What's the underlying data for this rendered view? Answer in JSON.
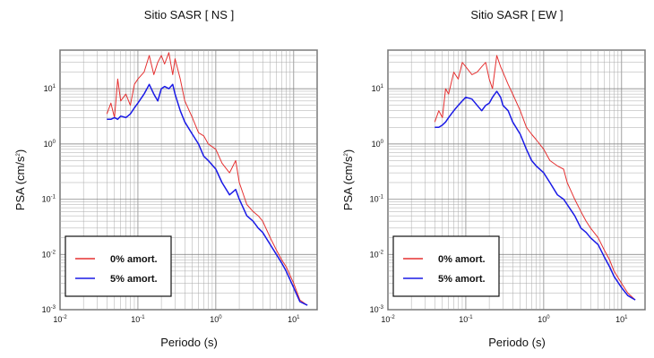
{
  "chart_data": [
    {
      "type": "line",
      "title": "Sitio SASR [ NS ]",
      "xlabel": "Periodo (s)",
      "ylabel": "PSA (cm/s",
      "ylabel_sup": "2",
      "ylabel_end": ")",
      "x_scale": "log",
      "y_scale": "log",
      "xlim": [
        0.01,
        20
      ],
      "ylim": [
        0.001,
        50
      ],
      "grid": true,
      "legend_position": "bottom-left",
      "x_ticks": [
        {
          "base": "10",
          "exp": "-2"
        },
        {
          "base": "10",
          "exp": "-1"
        },
        {
          "base": "10",
          "exp": "0"
        },
        {
          "base": "10",
          "exp": "1"
        }
      ],
      "y_ticks": [
        {
          "base": "10",
          "exp": "-3"
        },
        {
          "base": "10",
          "exp": "-2"
        },
        {
          "base": "10",
          "exp": "-1"
        },
        {
          "base": "10",
          "exp": "0"
        },
        {
          "base": "10",
          "exp": "1"
        }
      ],
      "series": [
        {
          "name": "0% amort.",
          "color": "#e53030",
          "x": [
            0.04,
            0.045,
            0.05,
            0.055,
            0.06,
            0.07,
            0.08,
            0.09,
            0.1,
            0.12,
            0.14,
            0.16,
            0.18,
            0.2,
            0.22,
            0.25,
            0.28,
            0.3,
            0.35,
            0.4,
            0.5,
            0.6,
            0.7,
            0.8,
            1.0,
            1.2,
            1.5,
            1.8,
            2.0,
            2.5,
            3.0,
            3.5,
            4.0,
            5.0,
            6.0,
            7.0,
            8.0,
            10.0,
            12.0,
            15.0
          ],
          "y": [
            3.5,
            5.5,
            3.0,
            15.0,
            6.0,
            8.0,
            5.0,
            12.0,
            15.0,
            20.0,
            40.0,
            18.0,
            30.0,
            40.0,
            28.0,
            45.0,
            18.0,
            35.0,
            15.0,
            6.0,
            3.0,
            1.6,
            1.4,
            1.0,
            0.8,
            0.45,
            0.3,
            0.5,
            0.2,
            0.08,
            0.06,
            0.05,
            0.04,
            0.02,
            0.012,
            0.008,
            0.006,
            0.003,
            0.0015,
            0.0012
          ]
        },
        {
          "name": "5% amort.",
          "color": "#1a1ae6",
          "x": [
            0.04,
            0.045,
            0.05,
            0.055,
            0.06,
            0.07,
            0.08,
            0.09,
            0.1,
            0.12,
            0.14,
            0.16,
            0.18,
            0.2,
            0.22,
            0.25,
            0.28,
            0.3,
            0.35,
            0.4,
            0.5,
            0.6,
            0.7,
            0.8,
            1.0,
            1.2,
            1.5,
            1.8,
            2.0,
            2.5,
            3.0,
            3.5,
            4.0,
            5.0,
            6.0,
            7.0,
            8.0,
            10.0,
            12.0,
            15.0
          ],
          "y": [
            2.8,
            2.8,
            3.0,
            2.8,
            3.2,
            3.0,
            3.5,
            4.5,
            5.5,
            8.0,
            12.0,
            8.0,
            6.0,
            10.0,
            11.0,
            10.0,
            12.0,
            8.0,
            4.0,
            2.5,
            1.5,
            1.0,
            0.6,
            0.5,
            0.35,
            0.2,
            0.12,
            0.15,
            0.1,
            0.05,
            0.04,
            0.03,
            0.025,
            0.015,
            0.01,
            0.007,
            0.005,
            0.0025,
            0.0014,
            0.0012
          ]
        }
      ]
    },
    {
      "type": "line",
      "title": "Sitio SASR [ EW ]",
      "xlabel": "Periodo (s)",
      "ylabel": "PSA (cm/s",
      "ylabel_sup": "2",
      "ylabel_end": ")",
      "x_scale": "log",
      "y_scale": "log",
      "xlim": [
        0.01,
        20
      ],
      "ylim": [
        0.001,
        50
      ],
      "grid": true,
      "legend_position": "bottom-left",
      "x_ticks": [
        {
          "base": "10",
          "exp": "-2"
        },
        {
          "base": "10",
          "exp": "-1"
        },
        {
          "base": "10",
          "exp": "0"
        },
        {
          "base": "10",
          "exp": "1"
        }
      ],
      "y_ticks": [
        {
          "base": "10",
          "exp": "-3"
        },
        {
          "base": "10",
          "exp": "-2"
        },
        {
          "base": "10",
          "exp": "-1"
        },
        {
          "base": "10",
          "exp": "0"
        },
        {
          "base": "10",
          "exp": "1"
        }
      ],
      "series": [
        {
          "name": "0% amort.",
          "color": "#e53030",
          "x": [
            0.04,
            0.045,
            0.05,
            0.055,
            0.06,
            0.07,
            0.08,
            0.09,
            0.1,
            0.12,
            0.14,
            0.16,
            0.18,
            0.2,
            0.22,
            0.25,
            0.28,
            0.3,
            0.35,
            0.4,
            0.5,
            0.6,
            0.7,
            0.8,
            1.0,
            1.2,
            1.5,
            1.8,
            2.0,
            2.5,
            3.0,
            3.5,
            4.0,
            5.0,
            6.0,
            7.0,
            8.0,
            10.0,
            12.0,
            15.0
          ],
          "y": [
            2.5,
            4.0,
            3.0,
            10.0,
            8.0,
            20.0,
            15.0,
            30.0,
            25.0,
            18.0,
            20.0,
            25.0,
            30.0,
            15.0,
            10.0,
            40.0,
            25.0,
            20.0,
            12.0,
            8.0,
            4.0,
            2.0,
            1.5,
            1.2,
            0.8,
            0.5,
            0.4,
            0.35,
            0.2,
            0.1,
            0.06,
            0.04,
            0.03,
            0.02,
            0.012,
            0.008,
            0.005,
            0.003,
            0.002,
            0.0015
          ]
        },
        {
          "name": "5% amort.",
          "color": "#1a1ae6",
          "x": [
            0.04,
            0.045,
            0.05,
            0.055,
            0.06,
            0.07,
            0.08,
            0.09,
            0.1,
            0.12,
            0.14,
            0.16,
            0.18,
            0.2,
            0.22,
            0.25,
            0.28,
            0.3,
            0.35,
            0.4,
            0.5,
            0.6,
            0.7,
            0.8,
            1.0,
            1.2,
            1.5,
            1.8,
            2.0,
            2.5,
            3.0,
            3.5,
            4.0,
            5.0,
            6.0,
            7.0,
            8.0,
            10.0,
            12.0,
            15.0
          ],
          "y": [
            2.0,
            2.0,
            2.2,
            2.5,
            3.0,
            4.0,
            5.0,
            6.0,
            7.0,
            6.5,
            5.0,
            4.0,
            5.0,
            5.5,
            7.0,
            9.0,
            7.0,
            5.0,
            4.0,
            2.5,
            1.5,
            0.8,
            0.5,
            0.4,
            0.3,
            0.2,
            0.12,
            0.1,
            0.08,
            0.05,
            0.03,
            0.025,
            0.02,
            0.015,
            0.009,
            0.006,
            0.004,
            0.0025,
            0.0018,
            0.0015
          ]
        }
      ]
    }
  ]
}
